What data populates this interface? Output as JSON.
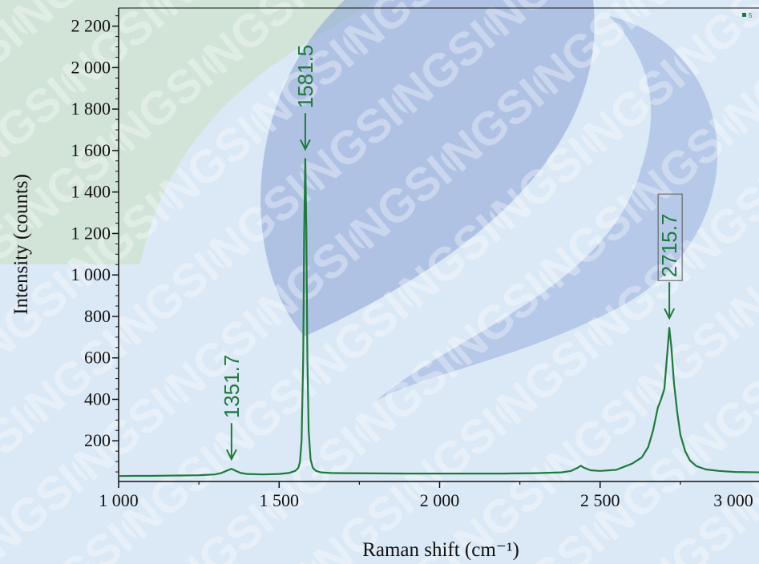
{
  "chart_data": {
    "type": "line",
    "title": "",
    "xlabel": "Raman shift (cm⁻¹)",
    "ylabel": "Intensity (counts)",
    "xlim": [
      1000,
      3000
    ],
    "ylim": [
      0,
      2250
    ],
    "x_ticks": [
      {
        "value": 1000,
        "label": "1 000"
      },
      {
        "value": 1500,
        "label": "1 500"
      },
      {
        "value": 2000,
        "label": "2 000"
      },
      {
        "value": 2500,
        "label": "2 500"
      },
      {
        "value": 3000,
        "label": "3 000"
      }
    ],
    "y_ticks": [
      {
        "value": 200,
        "label": "200"
      },
      {
        "value": 400,
        "label": "400"
      },
      {
        "value": 600,
        "label": "600"
      },
      {
        "value": 800,
        "label": "800"
      },
      {
        "value": 1000,
        "label": "1 000"
      },
      {
        "value": 1200,
        "label": "1 200"
      },
      {
        "value": 1400,
        "label": "1 400"
      },
      {
        "value": 1600,
        "label": "1 600"
      },
      {
        "value": 1800,
        "label": "1 800"
      },
      {
        "value": 2000,
        "label": "2 000"
      },
      {
        "value": 2200,
        "label": "2 200"
      }
    ],
    "grid": false,
    "series": [
      {
        "color": "#1e7a3a",
        "x": [
          1000,
          1050,
          1100,
          1150,
          1200,
          1250,
          1300,
          1320,
          1340,
          1351.7,
          1365,
          1380,
          1400,
          1450,
          1500,
          1530,
          1550,
          1560,
          1565,
          1570,
          1575,
          1578,
          1581.5,
          1585,
          1588,
          1592,
          1598,
          1605,
          1615,
          1630,
          1660,
          1700,
          1800,
          1900,
          2000,
          2100,
          2200,
          2300,
          2380,
          2410,
          2430,
          2440,
          2450,
          2470,
          2500,
          2550,
          2600,
          2630,
          2650,
          2665,
          2680,
          2690,
          2700,
          2708,
          2715.7,
          2722,
          2730,
          2740,
          2750,
          2765,
          2780,
          2800,
          2830,
          2870,
          2920,
          3000
        ],
        "y": [
          30,
          31,
          31,
          32,
          33,
          34,
          38,
          45,
          58,
          65,
          55,
          45,
          40,
          38,
          40,
          45,
          55,
          70,
          100,
          200,
          600,
          1200,
          1560,
          1200,
          600,
          250,
          110,
          70,
          55,
          48,
          45,
          44,
          43,
          42,
          42,
          42,
          42,
          44,
          48,
          55,
          70,
          80,
          70,
          58,
          55,
          60,
          90,
          120,
          170,
          250,
          360,
          400,
          450,
          600,
          745,
          650,
          480,
          340,
          230,
          150,
          105,
          78,
          62,
          55,
          50,
          48
        ]
      }
    ],
    "annotations": [
      {
        "text": "1351.7",
        "x": 1351.7,
        "boxed": false
      },
      {
        "text": "1581.5",
        "x": 1581.5,
        "boxed": false
      },
      {
        "text": "2715.7",
        "x": 2715.7,
        "boxed": true
      }
    ],
    "legend": {
      "text": "5",
      "position": "top-right"
    }
  },
  "watermark": {
    "text": "NGSIC",
    "color": "#ffffff"
  },
  "colors": {
    "series": "#1e7a3a",
    "background": "#dbe9f6",
    "axis": "#111111"
  }
}
